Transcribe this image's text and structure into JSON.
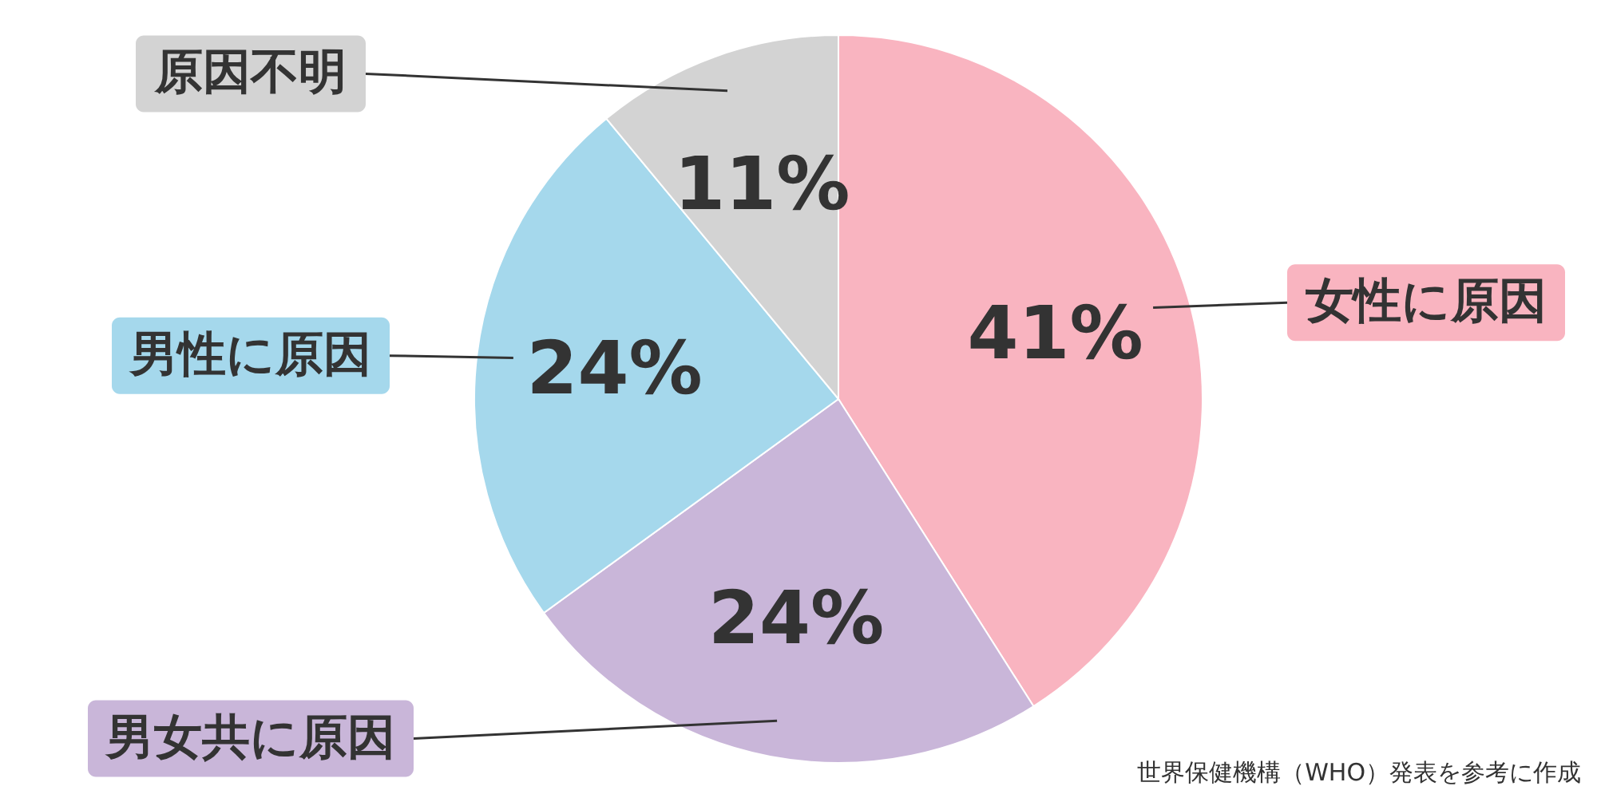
{
  "chart_data": {
    "type": "pie",
    "categories": [
      "女性に原因",
      "男女共に原因",
      "男性に原因",
      "原因不明"
    ],
    "values": [
      41,
      24,
      24,
      11
    ],
    "value_labels": [
      "41%",
      "24%",
      "24%",
      "11%"
    ],
    "colors": [
      "#f9b4c0",
      "#c9b6d9",
      "#a5d8ec",
      "#d3d3d3"
    ],
    "annotations": [
      "世界保健機構（WHO）発表を参考に作成"
    ]
  }
}
